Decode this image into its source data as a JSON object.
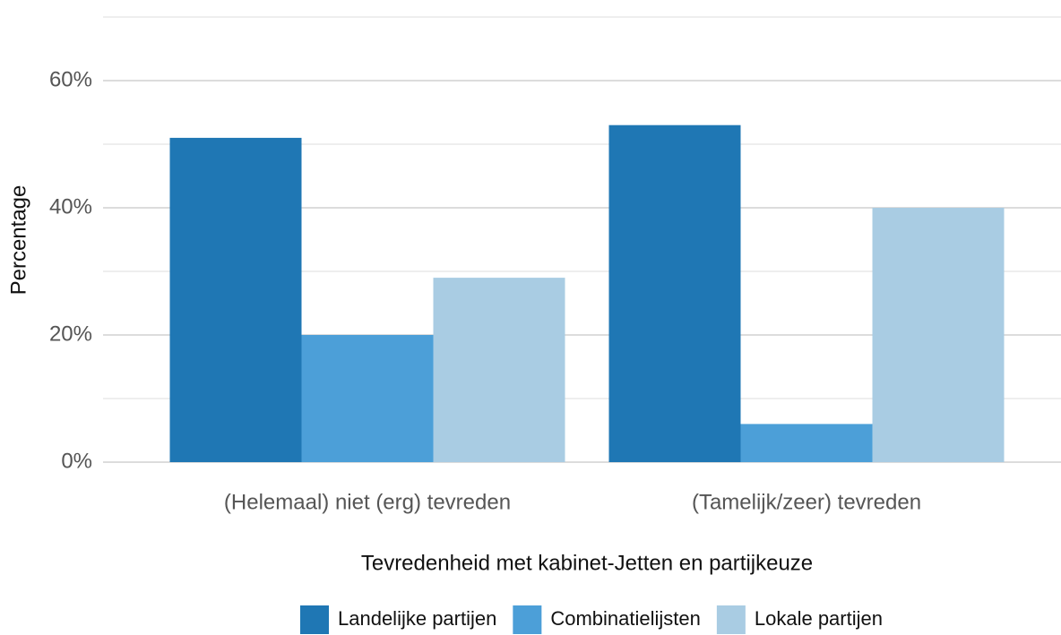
{
  "chart_data": {
    "type": "bar",
    "x_label": "Tevredenheid met kabinet-Jetten en partijkeuze",
    "y_label": "Percentage",
    "categories": [
      "(Helemaal) niet (erg) tevreden",
      "(Tamelijk/zeer) tevreden"
    ],
    "series": [
      {
        "name": "Landelijke partijen",
        "color": "#1f77b4",
        "values": [
          51,
          53
        ]
      },
      {
        "name": "Combinatielijsten",
        "color": "#4c9fd8",
        "values": [
          20,
          6
        ]
      },
      {
        "name": "Lokale partijen",
        "color": "#a9cce3",
        "values": [
          29,
          40
        ]
      }
    ],
    "ylim": [
      0,
      70
    ],
    "yticks": [
      {
        "value": 0,
        "label": "0%"
      },
      {
        "value": 20,
        "label": "20%"
      },
      {
        "value": 40,
        "label": "40%"
      },
      {
        "value": 60,
        "label": "60%"
      }
    ],
    "yminorticks": [
      10,
      30,
      50,
      70
    ],
    "grid": true,
    "legend": "bottom"
  }
}
